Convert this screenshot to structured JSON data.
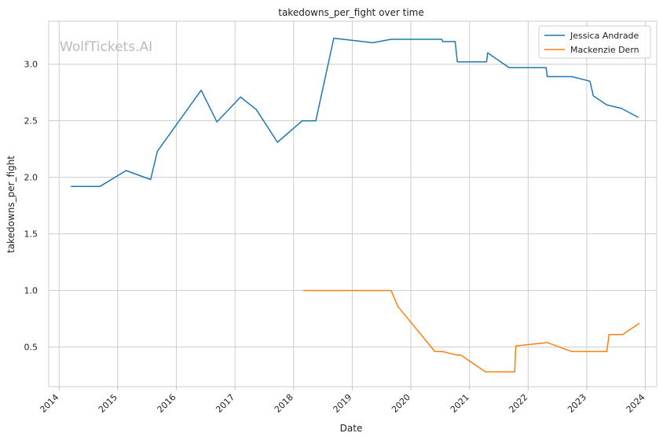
{
  "watermark": "WolfTickets.AI",
  "chart_data": {
    "type": "line",
    "title": "takedowns_per_fight over time",
    "xlabel": "Date",
    "ylabel": "takedowns_per_fight",
    "x_ticks": [
      "2014",
      "2015",
      "2016",
      "2017",
      "2018",
      "2019",
      "2020",
      "2021",
      "2022",
      "2023",
      "2024"
    ],
    "y_ticks": [
      "0.5",
      "1.0",
      "1.5",
      "2.0",
      "2.5",
      "3.0"
    ],
    "xlim": [
      "2013-10-28",
      "2024-03-12"
    ],
    "ylim": [
      0.15,
      3.38
    ],
    "grid": true,
    "legend_position": "top-right",
    "series": [
      {
        "name": "Jessica Andrade",
        "color": "#1f77b4",
        "points": [
          [
            "2014-03-15",
            1.92
          ],
          [
            "2014-09-13",
            1.92
          ],
          [
            "2015-02-22",
            2.06
          ],
          [
            "2015-07-25",
            1.98
          ],
          [
            "2015-09-05",
            2.23
          ],
          [
            "2016-06-04",
            2.77
          ],
          [
            "2016-09-10",
            2.49
          ],
          [
            "2017-02-04",
            2.71
          ],
          [
            "2017-05-13",
            2.6
          ],
          [
            "2017-09-22",
            2.31
          ],
          [
            "2018-02-24",
            2.5
          ],
          [
            "2018-05-19",
            2.5
          ],
          [
            "2018-09-08",
            3.23
          ],
          [
            "2019-05-11",
            3.19
          ],
          [
            "2019-08-31",
            3.22
          ],
          [
            "2020-04-25",
            3.22
          ],
          [
            "2020-07-12",
            3.22
          ],
          [
            "2020-07-18",
            3.2
          ],
          [
            "2020-10-03",
            3.2
          ],
          [
            "2020-10-17",
            3.02
          ],
          [
            "2021-04-17",
            3.02
          ],
          [
            "2021-04-24",
            3.1
          ],
          [
            "2021-09-04",
            2.97
          ],
          [
            "2022-04-23",
            2.97
          ],
          [
            "2022-04-30",
            2.89
          ],
          [
            "2022-10-01",
            2.89
          ],
          [
            "2023-01-21",
            2.85
          ],
          [
            "2023-02-11",
            2.72
          ],
          [
            "2023-05-06",
            2.64
          ],
          [
            "2023-08-05",
            2.61
          ],
          [
            "2023-11-18",
            2.53
          ]
        ]
      },
      {
        "name": "Mackenzie Dern",
        "color": "#ff7f0e",
        "points": [
          [
            "2018-03-03",
            1.0
          ],
          [
            "2018-05-19",
            1.0
          ],
          [
            "2019-08-31",
            1.0
          ],
          [
            "2019-10-12",
            0.86
          ],
          [
            "2020-05-30",
            0.46
          ],
          [
            "2020-07-18",
            0.46
          ],
          [
            "2020-10-10",
            0.43
          ],
          [
            "2020-11-07",
            0.43
          ],
          [
            "2021-04-10",
            0.28
          ],
          [
            "2021-10-09",
            0.28
          ],
          [
            "2021-10-16",
            0.51
          ],
          [
            "2022-04-30",
            0.54
          ],
          [
            "2022-10-01",
            0.46
          ],
          [
            "2023-05-06",
            0.46
          ],
          [
            "2023-05-20",
            0.61
          ],
          [
            "2023-08-12",
            0.61
          ],
          [
            "2023-11-25",
            0.71
          ]
        ]
      }
    ]
  }
}
